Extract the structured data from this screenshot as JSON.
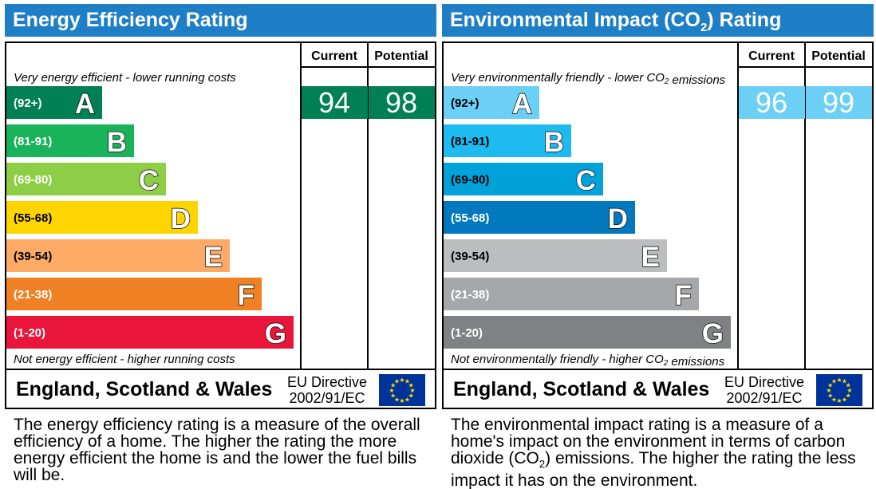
{
  "chart_data": [
    {
      "type": "bar",
      "title": "Energy Efficiency Rating",
      "columns": [
        "Current",
        "Potential"
      ],
      "top_note": "Very energy efficient - lower running costs",
      "bottom_note": "Not energy efficient - higher running costs",
      "categories": [
        "(92+)",
        "(81-91)",
        "(69-80)",
        "(55-68)",
        "(39-54)",
        "(21-38)",
        "(1-20)"
      ],
      "letters": [
        "A",
        "B",
        "C",
        "D",
        "E",
        "F",
        "G"
      ],
      "colors": [
        "#008054",
        "#19b459",
        "#8dce46",
        "#ffd500",
        "#fcaa65",
        "#ef8023",
        "#e9153b"
      ],
      "current": {
        "value": 94,
        "band": "A"
      },
      "potential": {
        "value": 98,
        "band": "A"
      },
      "footer": {
        "country": "England, Scotland & Wales",
        "directive_line1": "EU Directive",
        "directive_line2": "2002/91/EC"
      },
      "description": "The energy efficiency rating is a measure of the overall efficiency of a home. The higher the rating the more energy efficient the home is and the lower the fuel bills will be."
    },
    {
      "type": "bar",
      "title": "Environmental Impact (CO2) Rating",
      "columns": [
        "Current",
        "Potential"
      ],
      "top_note": "Very environmentally friendly - lower CO2 emissions",
      "bottom_note": "Not environmentally friendly - higher CO2 emissions",
      "categories": [
        "(92+)",
        "(81-91)",
        "(69-80)",
        "(55-68)",
        "(39-54)",
        "(21-38)",
        "(1-20)"
      ],
      "letters": [
        "A",
        "B",
        "C",
        "D",
        "E",
        "F",
        "G"
      ],
      "colors": [
        "#6ccff6",
        "#1ebbf0",
        "#00a2d9",
        "#0278bf",
        "#bbbdbf",
        "#a6a7aa",
        "#808184"
      ],
      "current": {
        "value": 96,
        "band": "A"
      },
      "potential": {
        "value": 99,
        "band": "A"
      },
      "footer": {
        "country": "England, Scotland & Wales",
        "directive_line1": "EU Directive",
        "directive_line2": "2002/91/EC"
      },
      "description": "The environmental impact rating is a measure of a home's impact on the environment in terms of carbon dioxide (CO2) emissions. The higher the rating the less impact it has on the environment."
    }
  ],
  "colors": {
    "header": "#1f7fc6",
    "eu_blue": "#003399",
    "eu_star": "#ffdd00",
    "white": "#ffffff"
  }
}
